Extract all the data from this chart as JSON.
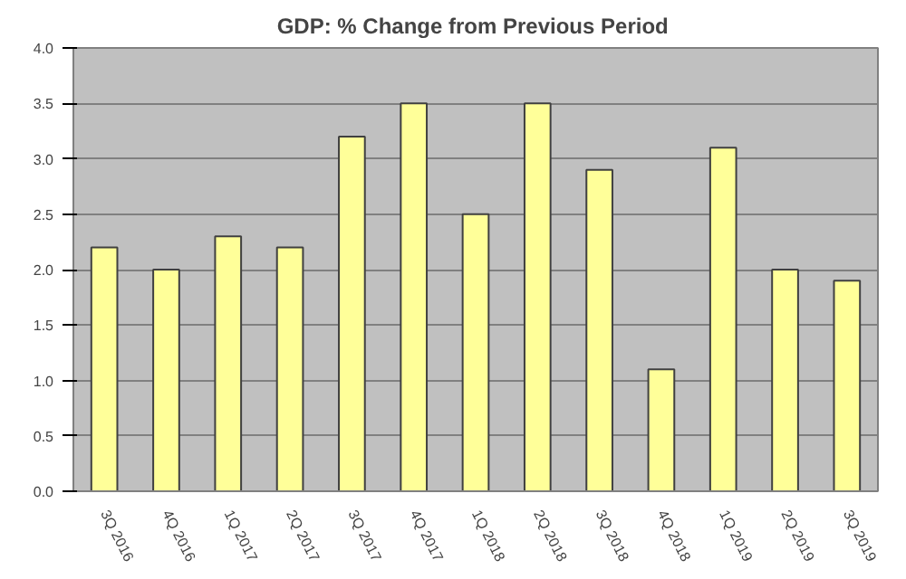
{
  "chart_data": {
    "type": "bar",
    "title": "GDP: %  Change from Previous Period",
    "categories": [
      "3Q 2016",
      "4Q 2016",
      "1Q 2017",
      "2Q 2017",
      "3Q 2017",
      "4Q 2017",
      "1Q 2018",
      "2Q 2018",
      "3Q 2018",
      "4Q 2018",
      "1Q 2019",
      "2Q 2019",
      "3Q 2019"
    ],
    "values": [
      2.2,
      2.0,
      2.3,
      2.2,
      3.2,
      3.5,
      2.5,
      3.5,
      2.9,
      1.1,
      3.1,
      2.0,
      1.9
    ],
    "color": "#ffff99",
    "ylim": [
      0,
      4
    ],
    "yticks": [
      {
        "value": 0,
        "label": "0.0"
      },
      {
        "value": 0.5,
        "label": "0.5"
      },
      {
        "value": 1,
        "label": "1.0"
      },
      {
        "value": 1.5,
        "label": "1.5"
      },
      {
        "value": 2,
        "label": "2.0"
      },
      {
        "value": 2.5,
        "label": "2.5"
      },
      {
        "value": 3,
        "label": "3.0"
      },
      {
        "value": 3.5,
        "label": "3.5"
      },
      {
        "value": 4,
        "label": "4.0"
      }
    ],
    "grid": "y"
  }
}
